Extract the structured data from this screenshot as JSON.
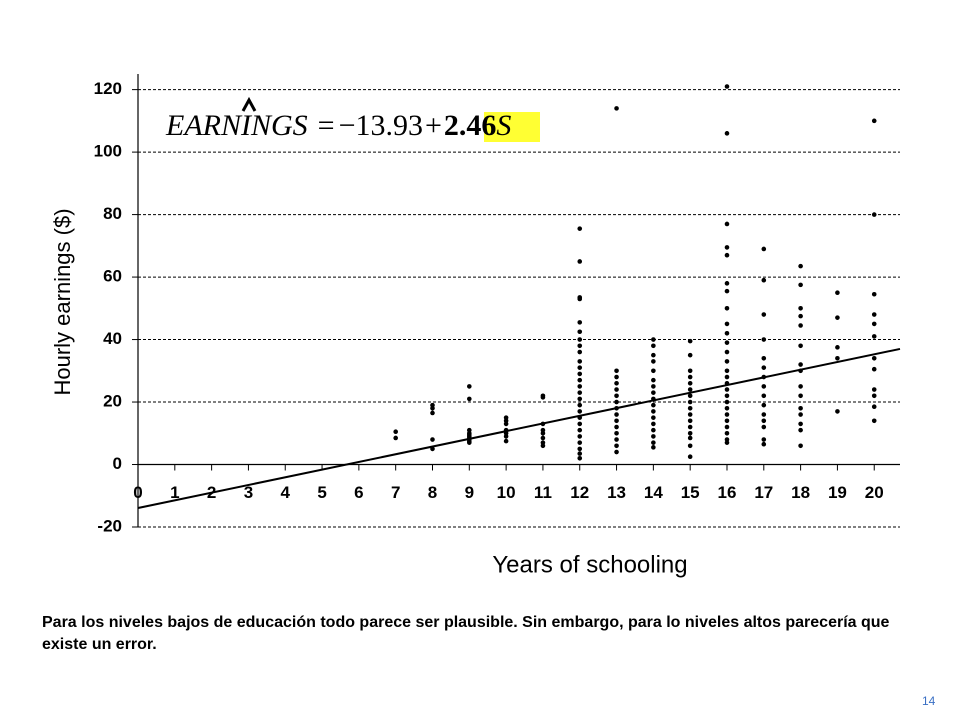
{
  "chart_data": {
    "type": "scatter",
    "xlabel": "Years of schooling",
    "ylabel": "Hourly earnings ($)",
    "xlim": [
      0,
      20.7
    ],
    "ylim": [
      -20,
      125
    ],
    "xticks": [
      0,
      1,
      2,
      3,
      4,
      5,
      6,
      7,
      8,
      9,
      10,
      11,
      12,
      13,
      14,
      15,
      16,
      17,
      18,
      19,
      20
    ],
    "yticks": [
      -20,
      0,
      20,
      40,
      60,
      80,
      100,
      120
    ],
    "grid": true,
    "color": "#000000",
    "groups": [
      {
        "x": 7,
        "values": [
          10.5,
          8.5
        ]
      },
      {
        "x": 8,
        "values": [
          19,
          18,
          16.5,
          8,
          5
        ]
      },
      {
        "x": 9,
        "values": [
          25,
          21,
          11,
          10,
          9.5,
          9,
          8.5,
          8,
          7.5,
          7
        ]
      },
      {
        "x": 10,
        "values": [
          15,
          14,
          13,
          11,
          10,
          9,
          7.5
        ]
      },
      {
        "x": 11,
        "values": [
          22,
          21.5,
          13,
          11,
          10,
          8.5,
          7,
          6
        ]
      },
      {
        "x": 12,
        "values": [
          75.5,
          65,
          53.5,
          53,
          45.5,
          42.5,
          40,
          38,
          36,
          33,
          31,
          29,
          27,
          25,
          23,
          21,
          19,
          17,
          15,
          13,
          11,
          9,
          7,
          5,
          3.5,
          2
        ]
      },
      {
        "x": 13,
        "values": [
          114,
          30,
          28,
          26,
          24,
          22,
          20,
          18,
          16,
          14,
          12,
          10,
          8,
          6,
          4
        ]
      },
      {
        "x": 14,
        "values": [
          40,
          38,
          35,
          33,
          30,
          27,
          25,
          23,
          21,
          19,
          17,
          15,
          13,
          11,
          9,
          7,
          5.5
        ]
      },
      {
        "x": 15,
        "values": [
          39.5,
          35,
          30,
          28,
          26,
          24,
          22,
          20,
          18,
          16,
          14,
          12,
          10,
          8.5,
          6,
          2.5
        ]
      },
      {
        "x": 16,
        "values": [
          121,
          106,
          77,
          69.5,
          67,
          58,
          55.5,
          50,
          45,
          42,
          39,
          36,
          33,
          30,
          28,
          26,
          24,
          22,
          20,
          18,
          16,
          14,
          12,
          10,
          8,
          7
        ]
      },
      {
        "x": 17,
        "values": [
          69,
          59,
          48,
          40,
          34,
          31,
          28,
          25,
          22,
          19,
          16,
          14,
          12,
          8,
          6.5
        ]
      },
      {
        "x": 18,
        "values": [
          63.5,
          57.5,
          50,
          47.5,
          44.5,
          38,
          32,
          30,
          25,
          22,
          18,
          16,
          13,
          11,
          6
        ]
      },
      {
        "x": 19,
        "values": [
          55,
          47,
          37.5,
          34,
          17
        ]
      },
      {
        "x": 20,
        "values": [
          110,
          80,
          54.5,
          48,
          45,
          41,
          34,
          30.5,
          24,
          22,
          18.5,
          14
        ]
      }
    ],
    "regression": {
      "intercept": -13.93,
      "slope": 2.46,
      "intercept_label": "−13.93"
    },
    "equation": {
      "lhs": "EARNINGS",
      "eq": "=",
      "plus": "+",
      "var": "S"
    }
  },
  "caption": "Para los niveles bajos de educación todo parece ser plausible. Sin embargo, para lo niveles altos parecería que existe un error.",
  "page_number": "14"
}
